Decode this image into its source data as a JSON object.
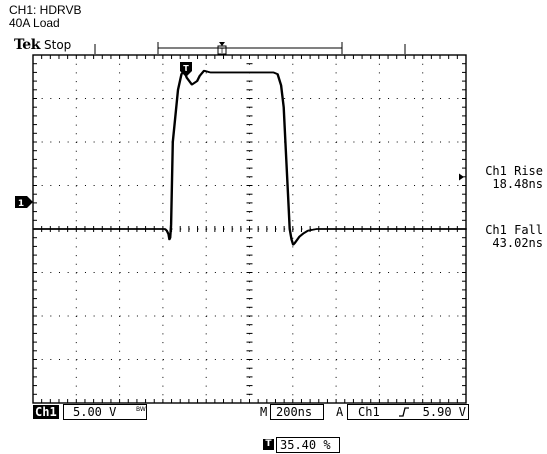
{
  "caption": {
    "channel_name": "CH1: HDRVB",
    "load": "40A Load"
  },
  "header": {
    "brand": "Tek",
    "acquisition_status": "Stop"
  },
  "measurements": [
    {
      "label": "Ch1 Rise",
      "value": "18.48ns"
    },
    {
      "label": "Ch1 Fall",
      "value": "43.02ns"
    }
  ],
  "status_bar": {
    "channel": "Ch1",
    "volts_per_div": "5.00 V",
    "bandwidth_limit_icon": "BW",
    "timebase_prefix": "M",
    "time_per_div": "200ns",
    "trigger_prefix": "A",
    "trigger_source": "Ch1",
    "trigger_slope_icon": "rising-edge",
    "trigger_level": "5.90 V"
  },
  "trigger_position": {
    "icon": "T",
    "value": "35.40 %"
  },
  "graticule": {
    "horizontal_divisions": 10,
    "vertical_divisions": 8,
    "color": "#000000",
    "background": "#ffffff"
  },
  "chart_data": {
    "type": "line",
    "title": "",
    "xlabel": "",
    "ylabel": "",
    "x_unit": "ns",
    "y_unit": "V",
    "xlim": [
      -708,
      1292
    ],
    "ylim": [
      -20,
      20
    ],
    "series": [
      {
        "name": "Ch1",
        "x": [
          -708,
          -100,
          -92,
          -84,
          -80,
          -76,
          -72,
          -64,
          -40,
          -24,
          -12,
          0,
          24,
          48,
          60,
          80,
          108,
          200,
          400,
          420,
          436,
          448,
          456,
          468,
          476,
          484,
          492,
          500,
          520,
          540,
          560,
          600,
          800,
          1292
        ],
        "y": [
          0,
          0,
          -0.2,
          -0.6,
          -1.2,
          -1.0,
          0.5,
          10.0,
          16.0,
          17.8,
          18.2,
          17.4,
          16.6,
          17.0,
          17.6,
          18.2,
          18.0,
          18.0,
          18.0,
          17.8,
          16.5,
          14.0,
          10.0,
          4.0,
          0.0,
          -1.2,
          -1.8,
          -1.6,
          -0.9,
          -0.5,
          -0.2,
          0,
          0,
          0
        ]
      }
    ]
  }
}
